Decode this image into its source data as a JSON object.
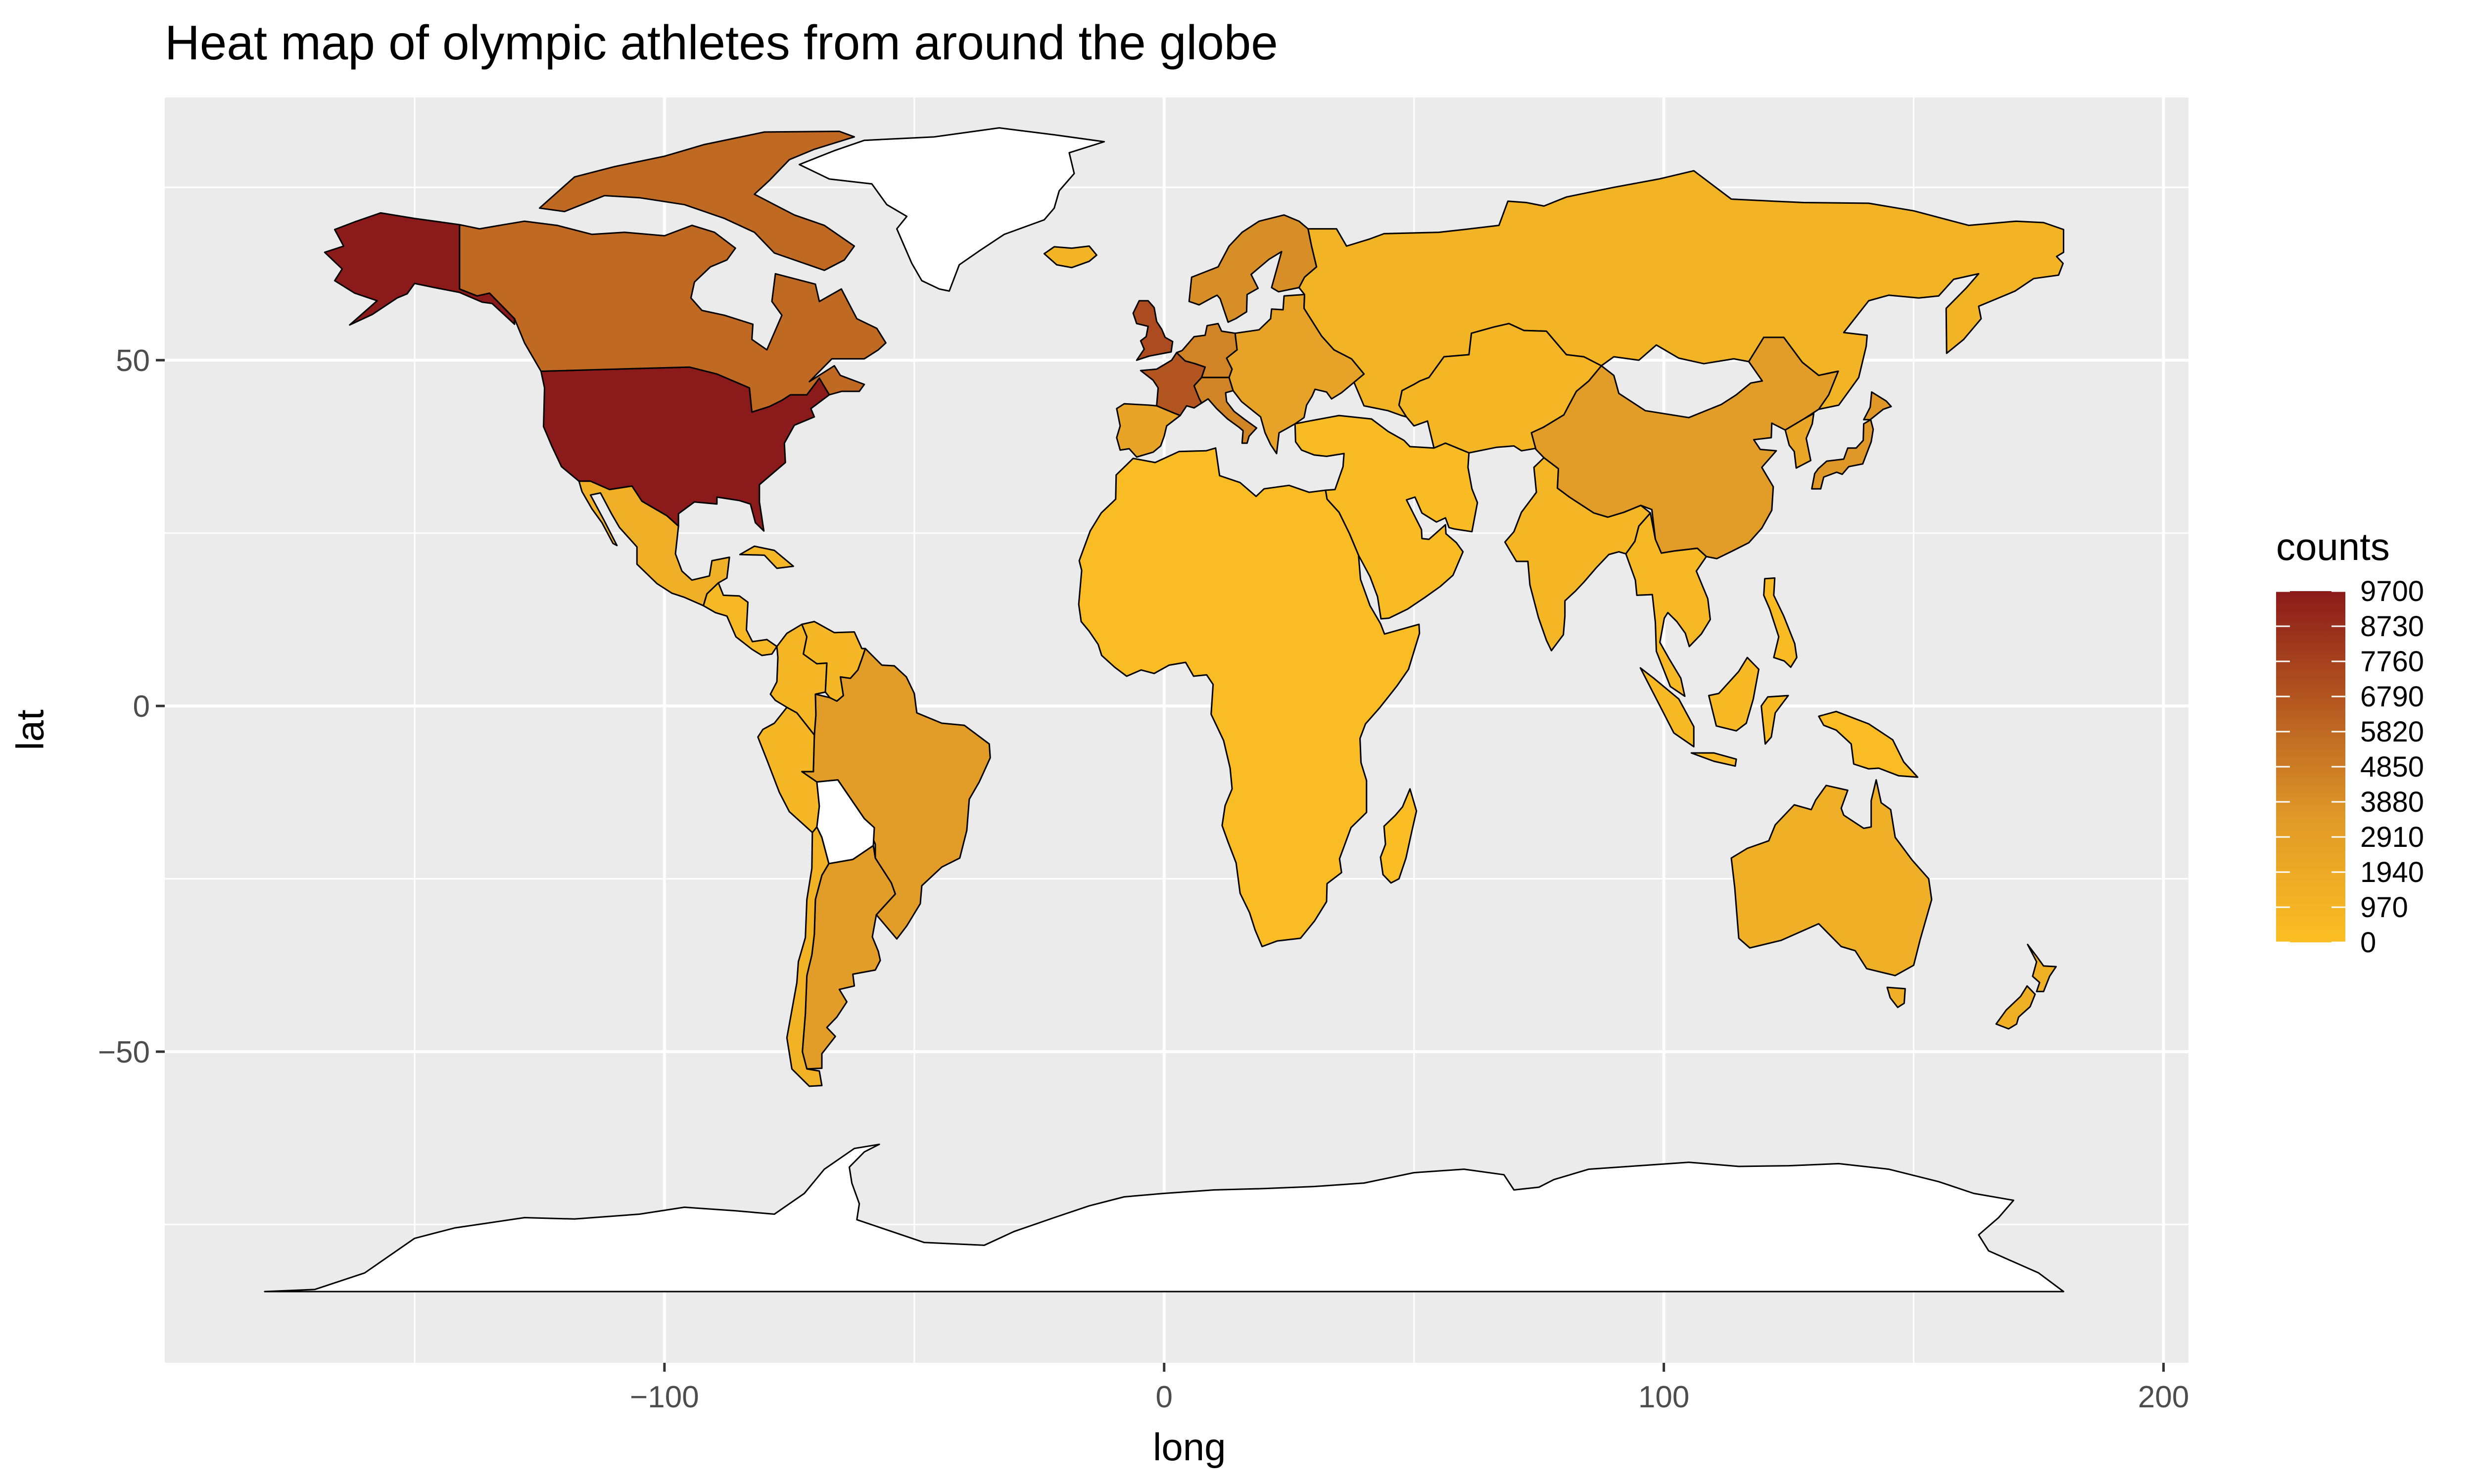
{
  "chart_data": {
    "type": "heatmap",
    "title": "Heat map of olympic athletes from around the globe",
    "xlabel": "long",
    "ylabel": "lat",
    "xlim": [
      -200,
      205
    ],
    "ylim": [
      -95,
      88
    ],
    "x_ticks": [
      -100,
      0,
      100,
      200
    ],
    "x_tick_labels": [
      "−100",
      "0",
      "100",
      "200"
    ],
    "y_ticks": [
      -50,
      0,
      50
    ],
    "y_tick_labels": [
      "−50",
      "0",
      "50"
    ],
    "minor_x": [
      -150,
      -50,
      50,
      150
    ],
    "minor_y": [
      -75,
      -25,
      25,
      75
    ],
    "grid": true,
    "legend": {
      "title": "counts",
      "placement": "right",
      "min": 0,
      "max": 9700,
      "breaks": [
        9700,
        8730,
        7760,
        6790,
        5820,
        4850,
        3880,
        2910,
        1940,
        970,
        0
      ],
      "break_labels": [
        "9700",
        "8730",
        "7760",
        "6790",
        "5820",
        "4850",
        "3880",
        "2910",
        "1940",
        "970",
        "0"
      ],
      "color_low": "#FBBF24",
      "color_mid": "#E09A28",
      "color_high": "#8B1A1A"
    },
    "regions": [
      {
        "name": "USA",
        "value": 9700
      },
      {
        "name": "Alaska",
        "value": 9700
      },
      {
        "name": "Canada",
        "value": 5800
      },
      {
        "name": "Canadian Arctic Islands",
        "value": 5800
      },
      {
        "name": "Greenland",
        "value": null
      },
      {
        "name": "Mexico",
        "value": 1500
      },
      {
        "name": "Central America",
        "value": 600
      },
      {
        "name": "Cuba",
        "value": 700
      },
      {
        "name": "Brazil",
        "value": 3200
      },
      {
        "name": "Argentina",
        "value": 3200
      },
      {
        "name": "Chile",
        "value": 1200
      },
      {
        "name": "Peru",
        "value": 700
      },
      {
        "name": "Colombia",
        "value": 800
      },
      {
        "name": "Venezuela",
        "value": 700
      },
      {
        "name": "Bolivia",
        "value": null
      },
      {
        "name": "UK",
        "value": 7300
      },
      {
        "name": "France",
        "value": 6800
      },
      {
        "name": "Iberia",
        "value": 2500
      },
      {
        "name": "Germany",
        "value": 4500
      },
      {
        "name": "Italy",
        "value": 4500
      },
      {
        "name": "Scandinavia",
        "value": 4000
      },
      {
        "name": "Eastern Europe",
        "value": 2600
      },
      {
        "name": "Iceland",
        "value": 1000
      },
      {
        "name": "Russia",
        "value": 1100
      },
      {
        "name": "Central Asia",
        "value": 800
      },
      {
        "name": "China",
        "value": 3200
      },
      {
        "name": "Japan",
        "value": 3500
      },
      {
        "name": "Korea",
        "value": 2200
      },
      {
        "name": "India",
        "value": 800
      },
      {
        "name": "Middle East",
        "value": 400
      },
      {
        "name": "Southeast Asia",
        "value": 600
      },
      {
        "name": "Indonesia",
        "value": 500
      },
      {
        "name": "Philippines",
        "value": 400
      },
      {
        "name": "New Guinea",
        "value": 300
      },
      {
        "name": "Africa",
        "value": 300
      },
      {
        "name": "Madagascar",
        "value": 100
      },
      {
        "name": "Australia",
        "value": 1500
      },
      {
        "name": "Tasmania",
        "value": 1500
      },
      {
        "name": "New Zealand",
        "value": 1400
      },
      {
        "name": "Antarctica",
        "value": null
      }
    ]
  }
}
